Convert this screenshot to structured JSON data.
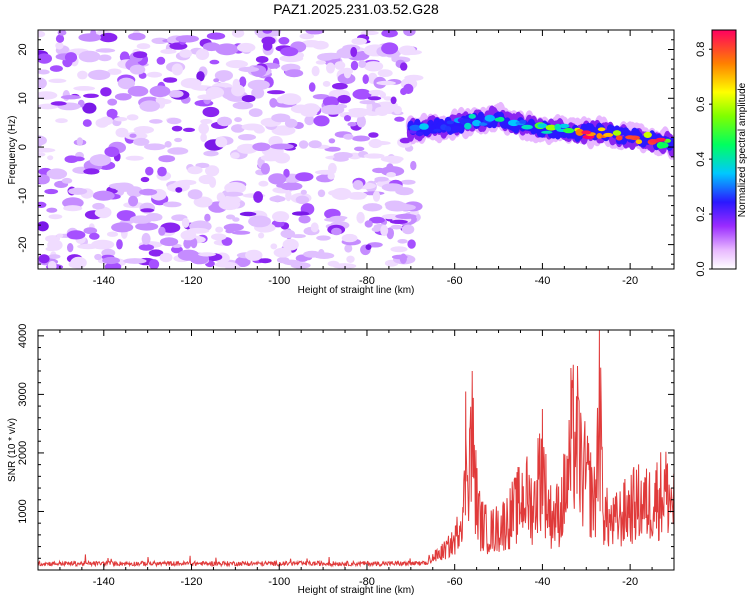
{
  "title": "PAZ1.2025.231.03.52.G28",
  "chart_data": [
    {
      "type": "heatmap",
      "name": "spectrogram",
      "title": "PAZ1.2025.231.03.52.G28",
      "xlabel": "Height of straight line (km)",
      "ylabel": "Frequency (Hz)",
      "xlim": [
        -155,
        -10
      ],
      "ylim": [
        -25,
        24
      ],
      "xticks": [
        -140,
        -120,
        -100,
        -80,
        -60,
        -40,
        -20
      ],
      "yticks": [
        -20,
        -10,
        0,
        10,
        20
      ],
      "noise_region_x": [
        -155,
        -69
      ],
      "signal_ridge": {
        "x": [
          -70,
          -65,
          -60,
          -55,
          -50,
          -45,
          -40,
          -35,
          -30,
          -25,
          -20,
          -15,
          -10
        ],
        "freq": [
          3.5,
          4,
          4.5,
          5.5,
          6,
          4.5,
          3.5,
          3.5,
          3,
          3,
          2,
          1.5,
          0.5
        ],
        "amplitude": [
          0.3,
          0.35,
          0.35,
          0.4,
          0.45,
          0.45,
          0.55,
          0.6,
          0.85,
          0.75,
          0.8,
          0.85,
          0.4
        ]
      },
      "colorbar": {
        "label": "Normalized spectral amplitude",
        "range": [
          0.0,
          0.87
        ],
        "ticks": [
          "0.0",
          "0.2",
          "0.4",
          "0.6",
          "0.8"
        ]
      }
    },
    {
      "type": "line",
      "name": "snr",
      "xlabel": "Height of straight line (km)",
      "ylabel": "SNR (10 * v/v)",
      "xlim": [
        -155,
        -10
      ],
      "ylim": [
        0,
        4100
      ],
      "xticks": [
        -140,
        -120,
        -100,
        -80,
        -60,
        -40,
        -20
      ],
      "yticks": [
        1000,
        2000,
        3000,
        4000
      ],
      "color": "#e03a3a",
      "envelope": {
        "x": [
          -155,
          -70,
          -67,
          -64,
          -62,
          -60,
          -58,
          -57,
          -56,
          -55,
          -54,
          -52,
          -50,
          -48,
          -46,
          -44,
          -42,
          -41,
          -40,
          -39,
          -38,
          -36,
          -34,
          -33,
          -32,
          -31,
          -30,
          -28,
          -27,
          -26,
          -25,
          -24,
          -22,
          -20,
          -18,
          -16,
          -14,
          -12,
          -10
        ],
        "y": [
          90,
          110,
          200,
          350,
          500,
          700,
          1500,
          3000,
          3400,
          1800,
          1200,
          1000,
          1100,
          1300,
          1600,
          2000,
          1600,
          2300,
          2750,
          1800,
          1400,
          1500,
          2500,
          3450,
          3400,
          2500,
          2400,
          1700,
          4100,
          1500,
          1300,
          1200,
          1400,
          1650,
          1750,
          1700,
          1900,
          2100,
          1700
        ]
      }
    }
  ]
}
